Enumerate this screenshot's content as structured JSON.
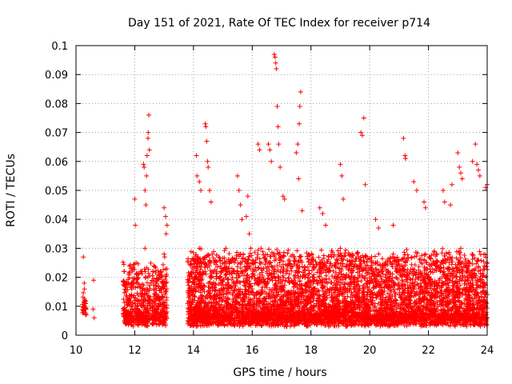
{
  "chart_data": {
    "type": "scatter",
    "title": "Day 151 of 2021, Rate Of TEC Index for receiver p714",
    "xlabel": "GPS time / hours",
    "ylabel": "ROTI / TECUs",
    "xlim": [
      10,
      24
    ],
    "ylim": [
      0,
      0.1
    ],
    "x_ticks": [
      10,
      12,
      14,
      16,
      18,
      20,
      22,
      24
    ],
    "x_tick_labels": [
      "10",
      "12",
      "14",
      "16",
      "18",
      "20",
      "22",
      "24"
    ],
    "y_ticks": [
      0,
      0.01,
      0.02,
      0.03,
      0.04,
      0.05,
      0.06,
      0.07,
      0.08,
      0.09,
      0.1
    ],
    "y_tick_labels": [
      "0",
      "0.01",
      "0.02",
      "0.03",
      "0.04",
      "0.05",
      "0.06",
      "0.07",
      "0.08",
      "0.09",
      "0.1"
    ],
    "grid": true,
    "marker": "+",
    "marker_color": "#ff0000",
    "series": [
      {
        "name": "ROTI",
        "color": "#ff0000",
        "x": [
          10.25,
          10.28,
          10.3,
          10.32,
          10.35,
          10.3,
          10.27,
          10.6,
          10.58,
          10.62,
          11.65,
          11.7,
          11.72,
          11.75,
          11.8,
          11.85,
          11.68,
          11.9,
          12.0,
          12.02,
          12.05,
          12.1,
          12.15,
          12.2,
          12.25,
          12.3,
          12.35,
          12.4,
          12.45,
          12.5,
          12.55,
          12.6,
          12.65,
          12.7,
          12.75,
          12.8,
          12.85,
          12.9,
          12.95,
          13.0,
          13.05,
          13.1,
          12.3,
          12.32,
          12.35,
          12.38,
          12.4,
          12.42,
          12.45,
          12.46,
          12.48,
          12.5,
          13.0,
          13.05,
          13.1,
          13.02,
          13.07,
          14.0,
          14.1,
          14.2,
          14.3,
          14.4,
          14.5,
          14.6,
          14.7,
          14.8,
          14.9,
          15.0,
          15.1,
          15.2,
          15.3,
          15.4,
          15.5,
          15.6,
          15.7,
          15.8,
          15.9,
          14.1,
          14.12,
          14.2,
          14.25,
          14.4,
          14.42,
          14.45,
          14.48,
          14.5,
          14.55,
          14.6,
          15.5,
          15.55,
          15.6,
          15.65,
          15.8,
          15.85,
          15.9,
          15.95,
          16.0,
          16.1,
          16.2,
          16.3,
          16.4,
          16.5,
          16.6,
          16.7,
          16.8,
          16.9,
          17.0,
          17.1,
          17.2,
          17.3,
          17.4,
          17.5,
          17.6,
          17.7,
          17.8,
          17.9,
          16.2,
          16.25,
          16.55,
          16.6,
          16.65,
          16.75,
          16.78,
          16.8,
          16.82,
          16.85,
          16.88,
          16.9,
          16.95,
          17.05,
          17.1,
          17.5,
          17.55,
          17.6,
          17.62,
          17.65,
          17.58,
          17.7,
          18.0,
          18.1,
          18.2,
          18.3,
          18.4,
          18.5,
          18.6,
          18.7,
          18.8,
          18.9,
          19.0,
          19.1,
          19.2,
          19.3,
          19.4,
          19.5,
          19.6,
          19.7,
          19.8,
          19.9,
          18.3,
          18.4,
          18.5,
          19.0,
          19.05,
          19.1,
          19.7,
          19.75,
          19.8,
          19.85,
          20.0,
          20.1,
          20.2,
          20.3,
          20.4,
          20.5,
          20.6,
          20.7,
          20.8,
          20.9,
          21.0,
          21.1,
          21.2,
          21.3,
          21.4,
          21.5,
          21.6,
          21.7,
          21.8,
          21.9,
          20.2,
          20.3,
          20.8,
          21.15,
          21.2,
          21.22,
          21.5,
          21.6,
          21.85,
          21.9,
          22.0,
          22.1,
          22.2,
          22.3,
          22.4,
          22.5,
          22.6,
          22.7,
          22.8,
          22.9,
          23.0,
          23.1,
          23.2,
          23.3,
          23.4,
          23.5,
          23.6,
          23.7,
          23.8,
          23.9,
          24.0,
          22.5,
          22.55,
          22.75,
          22.8,
          23.0,
          23.05,
          23.1,
          23.15,
          23.5,
          23.6,
          23.65,
          23.7,
          23.75,
          23.95,
          24.0
        ],
        "y": [
          0.027,
          0.018,
          0.012,
          0.009,
          0.007,
          0.01,
          0.008,
          0.019,
          0.009,
          0.006,
          0.022,
          0.015,
          0.008,
          0.005,
          0.012,
          0.01,
          0.004,
          0.018,
          0.047,
          0.038,
          0.025,
          0.018,
          0.012,
          0.022,
          0.016,
          0.008,
          0.03,
          0.015,
          0.02,
          0.012,
          0.018,
          0.01,
          0.024,
          0.014,
          0.009,
          0.017,
          0.012,
          0.02,
          0.011,
          0.028,
          0.015,
          0.008,
          0.059,
          0.058,
          0.05,
          0.045,
          0.055,
          0.062,
          0.068,
          0.07,
          0.076,
          0.064,
          0.044,
          0.041,
          0.038,
          0.027,
          0.035,
          0.015,
          0.02,
          0.03,
          0.012,
          0.022,
          0.018,
          0.011,
          0.025,
          0.014,
          0.02,
          0.012,
          0.03,
          0.016,
          0.01,
          0.022,
          0.014,
          0.028,
          0.012,
          0.018,
          0.02,
          0.062,
          0.055,
          0.053,
          0.05,
          0.073,
          0.072,
          0.067,
          0.06,
          0.058,
          0.05,
          0.046,
          0.055,
          0.05,
          0.045,
          0.04,
          0.041,
          0.048,
          0.035,
          0.03,
          0.016,
          0.025,
          0.012,
          0.03,
          0.018,
          0.022,
          0.014,
          0.02,
          0.012,
          0.028,
          0.016,
          0.01,
          0.024,
          0.014,
          0.018,
          0.011,
          0.022,
          0.015,
          0.02,
          0.012,
          0.066,
          0.064,
          0.066,
          0.064,
          0.06,
          0.097,
          0.096,
          0.094,
          0.092,
          0.079,
          0.072,
          0.066,
          0.058,
          0.048,
          0.047,
          0.063,
          0.066,
          0.073,
          0.079,
          0.084,
          0.054,
          0.043,
          0.015,
          0.02,
          0.012,
          0.025,
          0.016,
          0.01,
          0.022,
          0.014,
          0.018,
          0.012,
          0.03,
          0.016,
          0.011,
          0.024,
          0.014,
          0.02,
          0.012,
          0.026,
          0.015,
          0.018,
          0.044,
          0.042,
          0.038,
          0.059,
          0.055,
          0.047,
          0.07,
          0.069,
          0.075,
          0.052,
          0.018,
          0.012,
          0.025,
          0.015,
          0.022,
          0.01,
          0.02,
          0.014,
          0.028,
          0.012,
          0.018,
          0.024,
          0.013,
          0.02,
          0.011,
          0.022,
          0.015,
          0.026,
          0.012,
          0.018,
          0.04,
          0.037,
          0.038,
          0.068,
          0.062,
          0.061,
          0.053,
          0.05,
          0.046,
          0.044,
          0.018,
          0.012,
          0.025,
          0.015,
          0.022,
          0.01,
          0.02,
          0.028,
          0.014,
          0.018,
          0.012,
          0.03,
          0.016,
          0.022,
          0.013,
          0.02,
          0.015,
          0.026,
          0.012,
          0.018,
          0.014,
          0.05,
          0.046,
          0.045,
          0.052,
          0.063,
          0.058,
          0.056,
          0.054,
          0.06,
          0.066,
          0.059,
          0.057,
          0.055,
          0.051,
          0.052
        ]
      }
    ],
    "generated_density": {
      "note": "dense background of ROTI points between 0.003 and ~0.03 TECU across 10.2-10.6, 11.6-13.1 and 13.8-24 h",
      "segments": [
        {
          "x0": 10.22,
          "x1": 10.35,
          "ymin": 0.006,
          "ymax": 0.014,
          "n": 30
        },
        {
          "x0": 11.6,
          "x1": 13.1,
          "ymin": 0.003,
          "ymax": 0.022,
          "n": 600
        },
        {
          "x0": 13.8,
          "x1": 24.0,
          "ymin": 0.003,
          "ymax": 0.026,
          "n": 5500
        }
      ]
    }
  }
}
